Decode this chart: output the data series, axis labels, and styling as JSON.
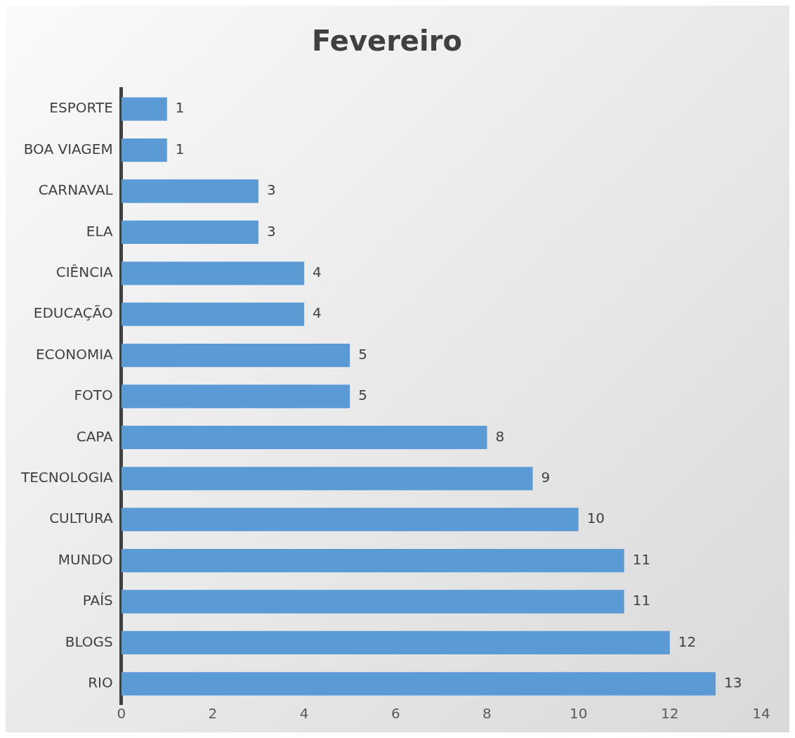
{
  "chart_data": {
    "type": "bar",
    "orientation": "horizontal",
    "title": "Fevereiro",
    "categories": [
      "ESPORTE",
      "BOA VIAGEM",
      "CARNAVAL",
      "ELA",
      "CIÊNCIA",
      "EDUCAÇÃO",
      "ECONOMIA",
      "FOTO",
      "CAPA",
      "TECNOLOGIA",
      "CULTURA",
      "MUNDO",
      "PAÍS",
      "BLOGS",
      "RIO"
    ],
    "values": [
      1,
      1,
      3,
      3,
      4,
      4,
      5,
      5,
      8,
      9,
      10,
      11,
      11,
      12,
      13
    ],
    "color": "#5b9bd5",
    "xlim": [
      0,
      14
    ],
    "xticks": [
      0,
      2,
      4,
      6,
      8,
      10,
      12,
      14
    ],
    "grid": false,
    "legend": false,
    "data_labels": true
  }
}
